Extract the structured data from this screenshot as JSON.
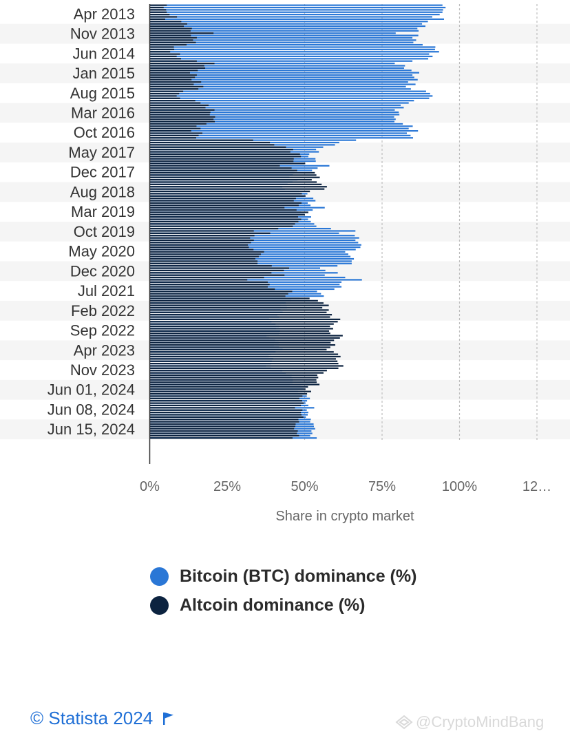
{
  "chart_data": {
    "type": "bar",
    "orientation": "horizontal",
    "overlay": true,
    "ytick_labels": [
      "Apr 2013",
      "Nov 2013",
      "Jun 2014",
      "Jan 2015",
      "Aug 2015",
      "Mar 2016",
      "Oct 2016",
      "May 2017",
      "Dec 2017",
      "Aug 2018",
      "Mar 2019",
      "Oct 2019",
      "May 2020",
      "Dec 2020",
      "Jul 2021",
      "Feb 2022",
      "Sep 2022",
      "Apr 2023",
      "Nov 2023",
      "Jun 01, 2024",
      "Jun 08, 2024",
      "Jun 15, 2024"
    ],
    "xtick_labels": [
      "0%",
      "25%",
      "50%",
      "75%",
      "100%",
      "12…"
    ],
    "xlim": [
      0,
      125
    ],
    "xlabel": "Share in crypto market",
    "grid": "vertical-dashed",
    "series": [
      {
        "name": "Bitcoin (BTC) dominance (%)",
        "color": "#2a77d6",
        "values": [
          94.5,
          95.5,
          94.7,
          94.5,
          93.6,
          91.2,
          95.0,
          89.8,
          87.9,
          89.0,
          86.4,
          86.8,
          79.4,
          86.7,
          84.8,
          86.0,
          85.1,
          88.1,
          92.2,
          92.1,
          93.4,
          90.2,
          91.3,
          89.9,
          84.8,
          79.1,
          82.4,
          82.1,
          84.5,
          87.0,
          84.8,
          85.4,
          86.5,
          83.4,
          85.8,
          82.7,
          84.3,
          89.2,
          90.5,
          91.3,
          90.2,
          85.3,
          83.6,
          81.0,
          82.0,
          79.1,
          80.4,
          80.6,
          78.9,
          79.4,
          79.0,
          81.7,
          84.9,
          83.6,
          86.6,
          83.0,
          84.2,
          85.0,
          66.6,
          61.2,
          59.8,
          56.0,
          53.7,
          54.6,
          51.5,
          51.2,
          53.5,
          53.6,
          49.8,
          58.0,
          54.2,
          52.4,
          46.7,
          46.2,
          45.1,
          47.7,
          46.1,
          44.5,
          42.8,
          43.6,
          48.3,
          50.9,
          49.7,
          52.8,
          53.5,
          51.0,
          51.9,
          56.5,
          52.6,
          48.8,
          49.9,
          52.1,
          51.1,
          52.0,
          53.1,
          53.8,
          58.5,
          66.4,
          61.1,
          66.2,
          67.6,
          66.4,
          67.3,
          68.3,
          68.0,
          66.5,
          63.1,
          64.1,
          64.8,
          65.9,
          65.2,
          65.2,
          60.6,
          55.0,
          56.7,
          60.7,
          56.5,
          63.1,
          68.5,
          61.9,
          61.3,
          61.9,
          59.6,
          54.0,
          55.3,
          56.2,
          48.4,
          45.7,
          43.9,
          42.2,
          44.3,
          42.2,
          42.9,
          41.2,
          41.8,
          38.5,
          39.3,
          40.6,
          41.8,
          40.8,
          42.1,
          41.7,
          37.7,
          38.6,
          40.5,
          41.6,
          40.1,
          41.7,
          42.9,
          40.6,
          39.2,
          38.4,
          39.9,
          39.4,
          39.1,
          37.5,
          39.1,
          42.8,
          43.9,
          45.9,
          45.6,
          46.2,
          46.1,
          45.2,
          48.9,
          49.7,
          47.9,
          49.2,
          50.7,
          51.7,
          50.8,
          50.3,
          51.2,
          53.1,
          50.7,
          51.2,
          51.0,
          50.4,
          52.0,
          51.8,
          52.9,
          53.0,
          53.4,
          52.2,
          52.5,
          51.8,
          53.9
        ]
      },
      {
        "name": "Altcoin dominance (%)",
        "color": "#0c2340",
        "values": [
          5.5,
          4.5,
          5.3,
          5.5,
          6.4,
          8.8,
          5.0,
          10.2,
          12.1,
          11.0,
          13.6,
          13.2,
          20.6,
          13.3,
          15.2,
          14.0,
          14.9,
          11.9,
          7.8,
          7.9,
          6.6,
          9.8,
          8.7,
          10.1,
          15.2,
          20.9,
          17.6,
          17.9,
          15.5,
          13.0,
          15.2,
          14.6,
          13.5,
          16.6,
          14.2,
          17.3,
          15.7,
          10.8,
          9.5,
          8.7,
          9.8,
          14.7,
          16.4,
          19.0,
          18.0,
          20.9,
          19.6,
          19.4,
          21.1,
          20.6,
          21.0,
          18.3,
          15.1,
          16.4,
          13.4,
          17.0,
          15.8,
          15.0,
          33.4,
          38.8,
          40.2,
          44.0,
          46.3,
          45.4,
          48.5,
          48.8,
          46.5,
          46.4,
          50.2,
          42.0,
          45.8,
          47.6,
          53.3,
          53.8,
          54.9,
          52.3,
          53.9,
          55.5,
          57.2,
          56.4,
          51.7,
          49.1,
          50.3,
          47.2,
          46.5,
          49.0,
          48.1,
          43.5,
          47.4,
          51.2,
          50.1,
          47.9,
          48.9,
          48.0,
          46.9,
          46.2,
          41.5,
          33.6,
          38.9,
          33.8,
          32.4,
          33.6,
          32.7,
          31.7,
          32.0,
          33.5,
          36.9,
          35.9,
          35.2,
          34.1,
          34.8,
          34.8,
          39.4,
          45.0,
          43.3,
          39.3,
          43.5,
          36.9,
          31.5,
          38.1,
          38.7,
          38.1,
          40.4,
          46.0,
          44.7,
          43.8,
          51.6,
          54.3,
          56.1,
          57.8,
          55.7,
          57.8,
          57.1,
          58.8,
          58.2,
          61.5,
          60.7,
          59.4,
          58.2,
          59.2,
          57.9,
          58.3,
          62.3,
          61.4,
          59.5,
          58.4,
          59.9,
          58.3,
          57.1,
          59.4,
          60.8,
          61.6,
          60.1,
          60.6,
          60.9,
          62.5,
          60.9,
          57.2,
          56.1,
          54.1,
          54.4,
          53.8,
          53.9,
          54.8,
          51.1,
          50.3,
          52.1,
          50.8,
          49.3,
          48.3,
          49.2,
          49.7,
          48.8,
          46.9,
          49.3,
          48.8,
          49.0,
          49.6,
          48.0,
          48.2,
          47.1,
          47.0,
          46.6,
          47.8,
          47.5,
          48.2,
          46.1
        ]
      }
    ]
  },
  "legend": {
    "items": [
      {
        "label": "Bitcoin (BTC) dominance (%)",
        "color": "#2a77d6"
      },
      {
        "label": "Altcoin dominance (%)",
        "color": "#0c2340"
      }
    ]
  },
  "footer": {
    "credit": "© Statista 2024",
    "watermark": "@CryptoMindBang"
  }
}
